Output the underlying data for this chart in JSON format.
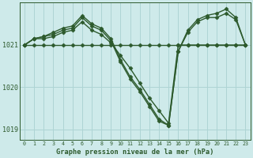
{
  "xlabel": "Graphe pression niveau de la mer (hPa)",
  "background_color": "#ceeaea",
  "grid_color": "#aed4d4",
  "line_color": "#2d5a2d",
  "x_ticks": [
    0,
    1,
    2,
    3,
    4,
    5,
    6,
    7,
    8,
    9,
    10,
    11,
    12,
    13,
    14,
    15,
    16,
    17,
    18,
    19,
    20,
    21,
    22,
    23
  ],
  "y_ticks": [
    1019,
    1020,
    1021
  ],
  "ylim": [
    1018.75,
    1022.0
  ],
  "xlim": [
    -0.5,
    23.5
  ],
  "series": [
    {
      "x": [
        0,
        1,
        2,
        3,
        4,
        5,
        6,
        7,
        8,
        9,
        10,
        11,
        12,
        13,
        14,
        15,
        16,
        17,
        18,
        19,
        20,
        21,
        22,
        23
      ],
      "y": [
        1021.0,
        1021.0,
        1021.0,
        1021.0,
        1021.0,
        1021.0,
        1021.0,
        1021.0,
        1021.0,
        1021.0,
        1021.0,
        1021.0,
        1021.0,
        1021.0,
        1021.0,
        1021.0,
        1021.0,
        1021.0,
        1021.0,
        1021.0,
        1021.0,
        1021.0,
        1021.0,
        1021.0
      ]
    },
    {
      "x": [
        0,
        1,
        2,
        3,
        4,
        5,
        6,
        7,
        8,
        9,
        10,
        11,
        12,
        13,
        14,
        15,
        16,
        17,
        18,
        19,
        20,
        21,
        22,
        23
      ],
      "y": [
        1021.0,
        1021.15,
        1021.15,
        1021.2,
        1021.3,
        1021.35,
        1021.55,
        1021.35,
        1021.25,
        1021.05,
        1020.75,
        1020.45,
        1020.1,
        1019.75,
        1019.45,
        1019.15,
        1021.0,
        1021.0,
        1021.0,
        1021.0,
        1021.0,
        1021.0,
        1021.0,
        1021.0
      ]
    },
    {
      "x": [
        0,
        1,
        2,
        3,
        4,
        5,
        6,
        7,
        8,
        9,
        10,
        11,
        12,
        13,
        14,
        15,
        16,
        17,
        18,
        19,
        20,
        21,
        22,
        23
      ],
      "y": [
        1021.0,
        1021.15,
        1021.2,
        1021.25,
        1021.35,
        1021.4,
        1021.65,
        1021.45,
        1021.35,
        1021.1,
        1020.6,
        1020.2,
        1019.9,
        1019.55,
        1019.2,
        1019.1,
        1020.85,
        1021.3,
        1021.55,
        1021.65,
        1021.65,
        1021.75,
        1021.6,
        1021.0
      ]
    },
    {
      "x": [
        0,
        1,
        2,
        3,
        4,
        5,
        6,
        7,
        8,
        9,
        10,
        11,
        12,
        13,
        14,
        15,
        16,
        17,
        18,
        19,
        20,
        21,
        22,
        23
      ],
      "y": [
        1021.0,
        1021.15,
        1021.2,
        1021.3,
        1021.4,
        1021.45,
        1021.7,
        1021.5,
        1021.4,
        1021.15,
        1020.65,
        1020.25,
        1019.95,
        1019.6,
        1019.25,
        1019.1,
        1020.85,
        1021.35,
        1021.6,
        1021.7,
        1021.75,
        1021.85,
        1021.65,
        1021.0
      ]
    }
  ]
}
